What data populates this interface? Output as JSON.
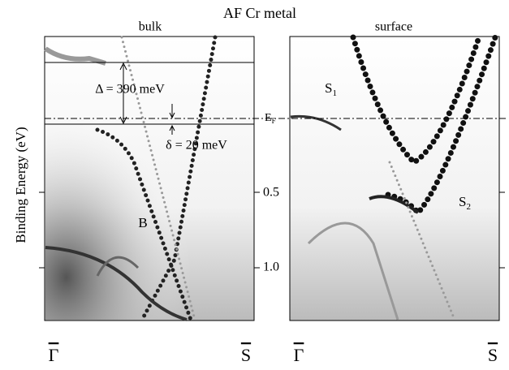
{
  "figure": {
    "title": "AF Cr metal",
    "panels": [
      {
        "label": "bulk",
        "x_start": "Γ",
        "x_end": "S"
      },
      {
        "label": "surface",
        "x_start": "Γ",
        "x_end": "S"
      }
    ],
    "y_axis_label": "Binding Energy (eV)",
    "y_ticks": [
      "0.5",
      "1.0"
    ],
    "fermi_label": {
      "main": "E",
      "sub": "F"
    },
    "annotations": {
      "gap_large": "Δ = 390 meV",
      "gap_small": "δ = 20 meV",
      "band_b": "B",
      "s1": {
        "main": "S",
        "sub": "1"
      },
      "s2": {
        "main": "S",
        "sub": "2"
      }
    }
  }
}
